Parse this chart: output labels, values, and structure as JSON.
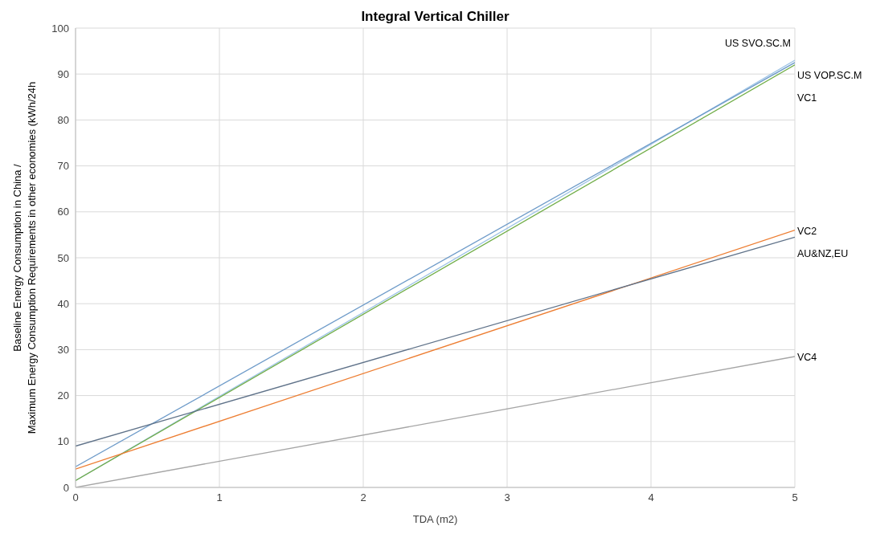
{
  "chart_data": {
    "type": "line",
    "title": "Integral Vertical Chiller",
    "xlabel": "TDA (m2)",
    "ylabel": "Baseline Energy Consumption in China / Maximum Energy Consumption Requirements in other economies (kWh/24h",
    "x": [
      0,
      5
    ],
    "series": [
      {
        "name": "US SVO.SC.M",
        "color": "#9dc3e6",
        "values": [
          1.5,
          93
        ]
      },
      {
        "name": "US VOP.SC.M",
        "color": "#6e9bc9",
        "values": [
          4.5,
          92.5
        ]
      },
      {
        "name": "VC1",
        "color": "#70ad47",
        "values": [
          1.5,
          92
        ]
      },
      {
        "name": "VC2",
        "color": "#ed7d31",
        "values": [
          4,
          56
        ]
      },
      {
        "name": "AU&NZ,EU",
        "color": "#5f7289",
        "values": [
          9,
          54.5
        ]
      },
      {
        "name": "VC4",
        "color": "#a5a5a5",
        "values": [
          0,
          28.5
        ]
      }
    ],
    "xlim": [
      0,
      5
    ],
    "xticks": [
      0,
      1,
      2,
      3,
      4,
      5
    ],
    "ylim": [
      0,
      100
    ],
    "yticks": [
      0,
      10,
      20,
      30,
      40,
      50,
      60,
      70,
      80,
      90,
      100
    ],
    "grid": true,
    "legend": false,
    "marker": "none",
    "line_style": "solid"
  }
}
